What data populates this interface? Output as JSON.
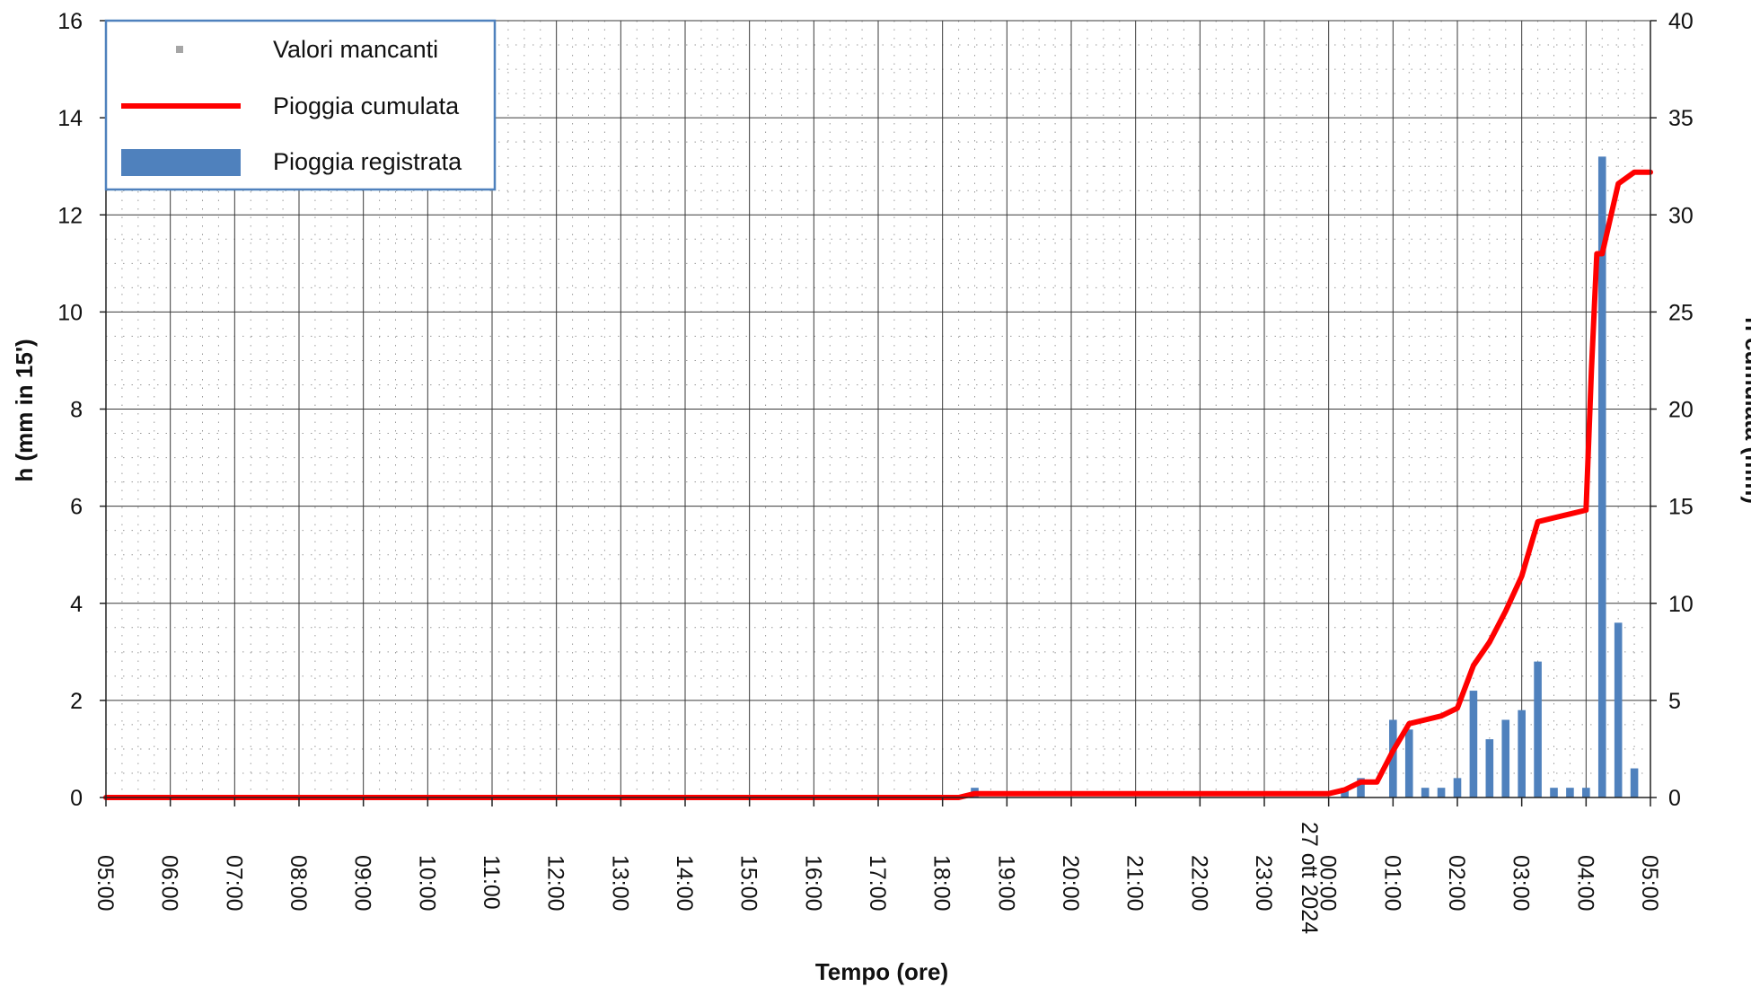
{
  "chart_data": {
    "type": "bar",
    "xlabel": "Tempo (ore)",
    "ylabel_left": "h (mm in 15')",
    "ylabel_right": "h cumulata (mm)",
    "date_label": "27 ott 2024",
    "ylim_left": [
      0,
      16
    ],
    "ylim_right": [
      0,
      40
    ],
    "grid": true,
    "legend_position": "top-left",
    "x_tick_labels": [
      "05:00",
      "06:00",
      "07:00",
      "08:00",
      "09:00",
      "10:00",
      "11:00",
      "12:00",
      "13:00",
      "14:00",
      "15:00",
      "16:00",
      "17:00",
      "18:00",
      "19:00",
      "20:00",
      "21:00",
      "22:00",
      "23:00",
      "00:00",
      "01:00",
      "02:00",
      "03:00",
      "04:00",
      "05:00"
    ],
    "y_left_ticks": [
      "0",
      "2",
      "4",
      "6",
      "8",
      "10",
      "12",
      "14",
      "16"
    ],
    "y_right_ticks": [
      "0",
      "5",
      "10",
      "15",
      "20",
      "25",
      "30",
      "35",
      "40"
    ],
    "legend": [
      {
        "label": "Valori mancanti",
        "symbol": "square",
        "color": "#a6a6a6"
      },
      {
        "label": "Pioggia cumulata",
        "symbol": "line",
        "color": "#ff0000"
      },
      {
        "label": "Pioggia registrata",
        "symbol": "bar",
        "color": "#4f81bd"
      }
    ],
    "series": [
      {
        "name": "Pioggia registrata",
        "axis": "left",
        "kind": "bar",
        "color": "#4f81bd",
        "x": [
          "18:30",
          "00:15",
          "00:30",
          "01:00",
          "01:15",
          "01:30",
          "01:45",
          "02:00",
          "02:15",
          "02:30",
          "02:45",
          "03:00",
          "03:15",
          "03:30",
          "03:45",
          "04:00",
          "04:15",
          "04:30",
          "04:45"
        ],
        "values": [
          0.2,
          0.2,
          0.4,
          1.6,
          1.4,
          0.2,
          0.2,
          0.4,
          2.2,
          1.2,
          1.6,
          1.8,
          2.8,
          0.2,
          0.2,
          0.2,
          13.2,
          3.6,
          0.6
        ]
      },
      {
        "name": "Pioggia cumulata",
        "axis": "right",
        "kind": "line",
        "color": "#ff0000",
        "x": [
          "05:00",
          "18:15",
          "18:30",
          "00:00",
          "00:15",
          "00:30",
          "00:45",
          "01:00",
          "01:15",
          "01:30",
          "01:45",
          "02:00",
          "02:15",
          "02:30",
          "02:45",
          "03:00",
          "03:15",
          "03:30",
          "03:45",
          "04:00",
          "04:05",
          "04:10",
          "04:15",
          "04:30",
          "04:45",
          "05:00"
        ],
        "values": [
          0,
          0,
          0.2,
          0.2,
          0.4,
          0.8,
          0.8,
          2.4,
          3.8,
          4.0,
          4.2,
          4.6,
          6.8,
          8.0,
          9.6,
          11.4,
          14.2,
          14.4,
          14.6,
          14.8,
          22.0,
          28.0,
          28.0,
          31.6,
          32.2,
          32.2
        ]
      }
    ]
  }
}
